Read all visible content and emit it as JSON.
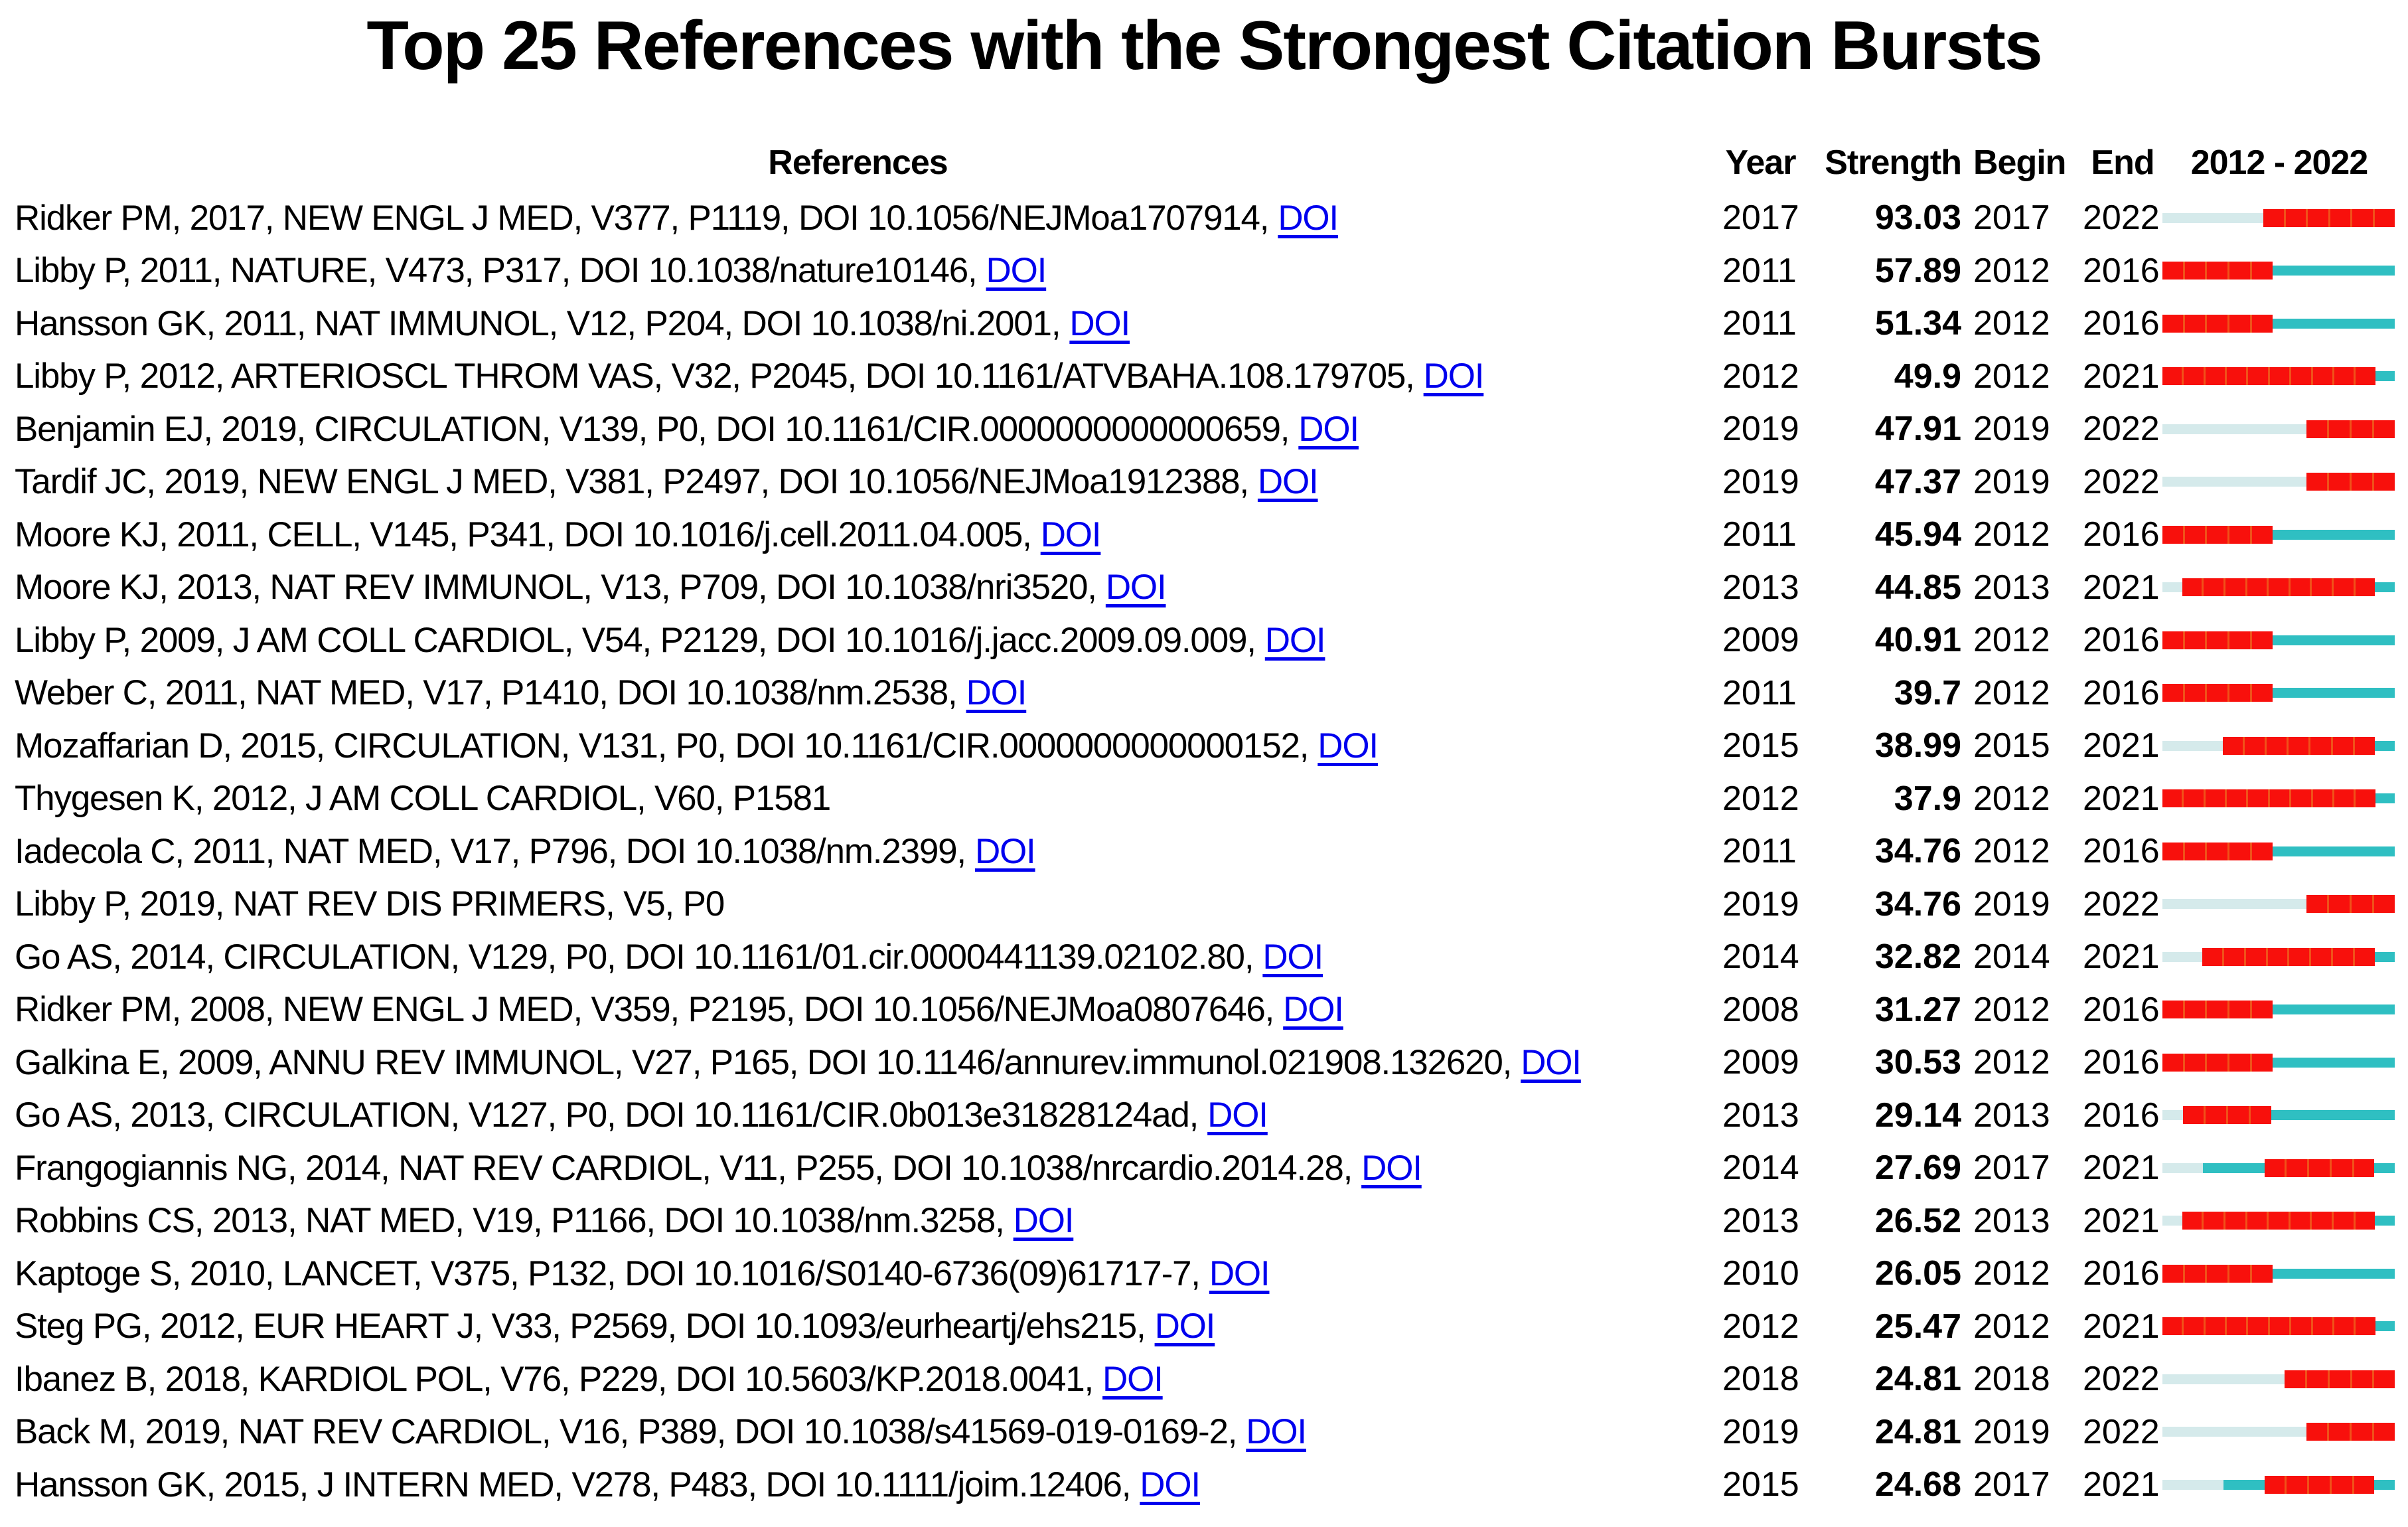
{
  "title": "Top 25 References with the Strongest Citation Bursts",
  "header": {
    "references": "References",
    "year": "Year",
    "strength": "Strength",
    "begin": "Begin",
    "end": "End",
    "period": "2012 - 2022"
  },
  "colors": {
    "burst_red": "#F8100C",
    "burst_separator": "#EE5E1C",
    "active_teal": "#2FBFC2",
    "pre_publication_pale": "#D5EAEB",
    "doi_link_blue": "#0000EE",
    "text_black": "#000000"
  },
  "chart_data": {
    "type": "table",
    "title": "Top 25 References with the Strongest Citation Bursts",
    "columns": [
      "References",
      "Year",
      "Strength",
      "Begin",
      "End",
      "2012 - 2022"
    ],
    "timeline_range": [
      2012,
      2022
    ],
    "bar_encoding": {
      "red": "citation burst years (Begin to End)",
      "teal": "published, outside burst period",
      "pale": "years before publication"
    },
    "rows": [
      {
        "reference": "Ridker PM, 2017, NEW ENGL J MED, V377, P1119, DOI 10.1056/NEJMoa1707914,",
        "doi_link": "DOI",
        "year": 2017,
        "strength": "93.03",
        "begin": 2017,
        "end": 2022
      },
      {
        "reference": "Libby P, 2011, NATURE, V473, P317, DOI 10.1038/nature10146,",
        "doi_link": "DOI",
        "year": 2011,
        "strength": "57.89",
        "begin": 2012,
        "end": 2016
      },
      {
        "reference": "Hansson GK, 2011, NAT IMMUNOL, V12, P204, DOI 10.1038/ni.2001,",
        "doi_link": "DOI",
        "year": 2011,
        "strength": "51.34",
        "begin": 2012,
        "end": 2016
      },
      {
        "reference": "Libby P, 2012, ARTERIOSCL THROM VAS, V32, P2045, DOI 10.1161/ATVBAHA.108.179705,",
        "doi_link": "DOI",
        "year": 2012,
        "strength": "49.9",
        "begin": 2012,
        "end": 2021
      },
      {
        "reference": "Benjamin EJ, 2019, CIRCULATION, V139, P0, DOI 10.1161/CIR.0000000000000659,",
        "doi_link": "DOI",
        "year": 2019,
        "strength": "47.91",
        "begin": 2019,
        "end": 2022
      },
      {
        "reference": "Tardif JC, 2019, NEW ENGL J MED, V381, P2497, DOI 10.1056/NEJMoa1912388,",
        "doi_link": "DOI",
        "year": 2019,
        "strength": "47.37",
        "begin": 2019,
        "end": 2022
      },
      {
        "reference": "Moore KJ, 2011, CELL, V145, P341, DOI 10.1016/j.cell.2011.04.005,",
        "doi_link": "DOI",
        "year": 2011,
        "strength": "45.94",
        "begin": 2012,
        "end": 2016
      },
      {
        "reference": "Moore KJ, 2013, NAT REV IMMUNOL, V13, P709, DOI 10.1038/nri3520,",
        "doi_link": "DOI",
        "year": 2013,
        "strength": "44.85",
        "begin": 2013,
        "end": 2021
      },
      {
        "reference": "Libby P, 2009, J AM COLL CARDIOL, V54, P2129, DOI 10.1016/j.jacc.2009.09.009,",
        "doi_link": "DOI",
        "year": 2009,
        "strength": "40.91",
        "begin": 2012,
        "end": 2016
      },
      {
        "reference": "Weber C, 2011, NAT MED, V17, P1410, DOI 10.1038/nm.2538,",
        "doi_link": "DOI",
        "year": 2011,
        "strength": "39.7",
        "begin": 2012,
        "end": 2016
      },
      {
        "reference": "Mozaffarian D, 2015, CIRCULATION, V131, P0, DOI 10.1161/CIR.0000000000000152,",
        "doi_link": "DOI",
        "year": 2015,
        "strength": "38.99",
        "begin": 2015,
        "end": 2021
      },
      {
        "reference": "Thygesen K, 2012, J AM COLL CARDIOL, V60, P1581",
        "doi_link": null,
        "year": 2012,
        "strength": "37.9",
        "begin": 2012,
        "end": 2021
      },
      {
        "reference": "Iadecola C, 2011, NAT MED, V17, P796, DOI 10.1038/nm.2399,",
        "doi_link": "DOI",
        "year": 2011,
        "strength": "34.76",
        "begin": 2012,
        "end": 2016
      },
      {
        "reference": "Libby P, 2019, NAT REV DIS PRIMERS, V5, P0",
        "doi_link": null,
        "year": 2019,
        "strength": "34.76",
        "begin": 2019,
        "end": 2022
      },
      {
        "reference": "Go AS, 2014, CIRCULATION, V129, P0, DOI 10.1161/01.cir.0000441139.02102.80,",
        "doi_link": "DOI",
        "year": 2014,
        "strength": "32.82",
        "begin": 2014,
        "end": 2021
      },
      {
        "reference": "Ridker PM, 2008, NEW ENGL J MED, V359, P2195, DOI 10.1056/NEJMoa0807646,",
        "doi_link": "DOI",
        "year": 2008,
        "strength": "31.27",
        "begin": 2012,
        "end": 2016
      },
      {
        "reference": "Galkina E, 2009, ANNU REV IMMUNOL, V27, P165, DOI 10.1146/annurev.immunol.021908.132620,",
        "doi_link": "DOI",
        "year": 2009,
        "strength": "30.53",
        "begin": 2012,
        "end": 2016
      },
      {
        "reference": "Go AS, 2013, CIRCULATION, V127, P0, DOI 10.1161/CIR.0b013e31828124ad,",
        "doi_link": "DOI",
        "year": 2013,
        "strength": "29.14",
        "begin": 2013,
        "end": 2016
      },
      {
        "reference": "Frangogiannis NG, 2014, NAT REV CARDIOL, V11, P255, DOI 10.1038/nrcardio.2014.28,",
        "doi_link": "DOI",
        "year": 2014,
        "strength": "27.69",
        "begin": 2017,
        "end": 2021
      },
      {
        "reference": "Robbins CS, 2013, NAT MED, V19, P1166, DOI 10.1038/nm.3258,",
        "doi_link": "DOI",
        "year": 2013,
        "strength": "26.52",
        "begin": 2013,
        "end": 2021
      },
      {
        "reference": "Kaptoge S, 2010, LANCET, V375, P132, DOI 10.1016/S0140-6736(09)61717-7,",
        "doi_link": "DOI",
        "year": 2010,
        "strength": "26.05",
        "begin": 2012,
        "end": 2016
      },
      {
        "reference": "Steg PG, 2012, EUR HEART J, V33, P2569, DOI 10.1093/eurheartj/ehs215,",
        "doi_link": "DOI",
        "year": 2012,
        "strength": "25.47",
        "begin": 2012,
        "end": 2021
      },
      {
        "reference": "Ibanez B, 2018, KARDIOL POL, V76, P229, DOI 10.5603/KP.2018.0041,",
        "doi_link": "DOI",
        "year": 2018,
        "strength": "24.81",
        "begin": 2018,
        "end": 2022
      },
      {
        "reference": "Back M, 2019, NAT REV CARDIOL, V16, P389, DOI 10.1038/s41569-019-0169-2,",
        "doi_link": "DOI",
        "year": 2019,
        "strength": "24.81",
        "begin": 2019,
        "end": 2022
      },
      {
        "reference": "Hansson GK, 2015, J INTERN MED, V278, P483, DOI 10.1111/joim.12406,",
        "doi_link": "DOI",
        "year": 2015,
        "strength": "24.68",
        "begin": 2017,
        "end": 2021
      }
    ]
  }
}
